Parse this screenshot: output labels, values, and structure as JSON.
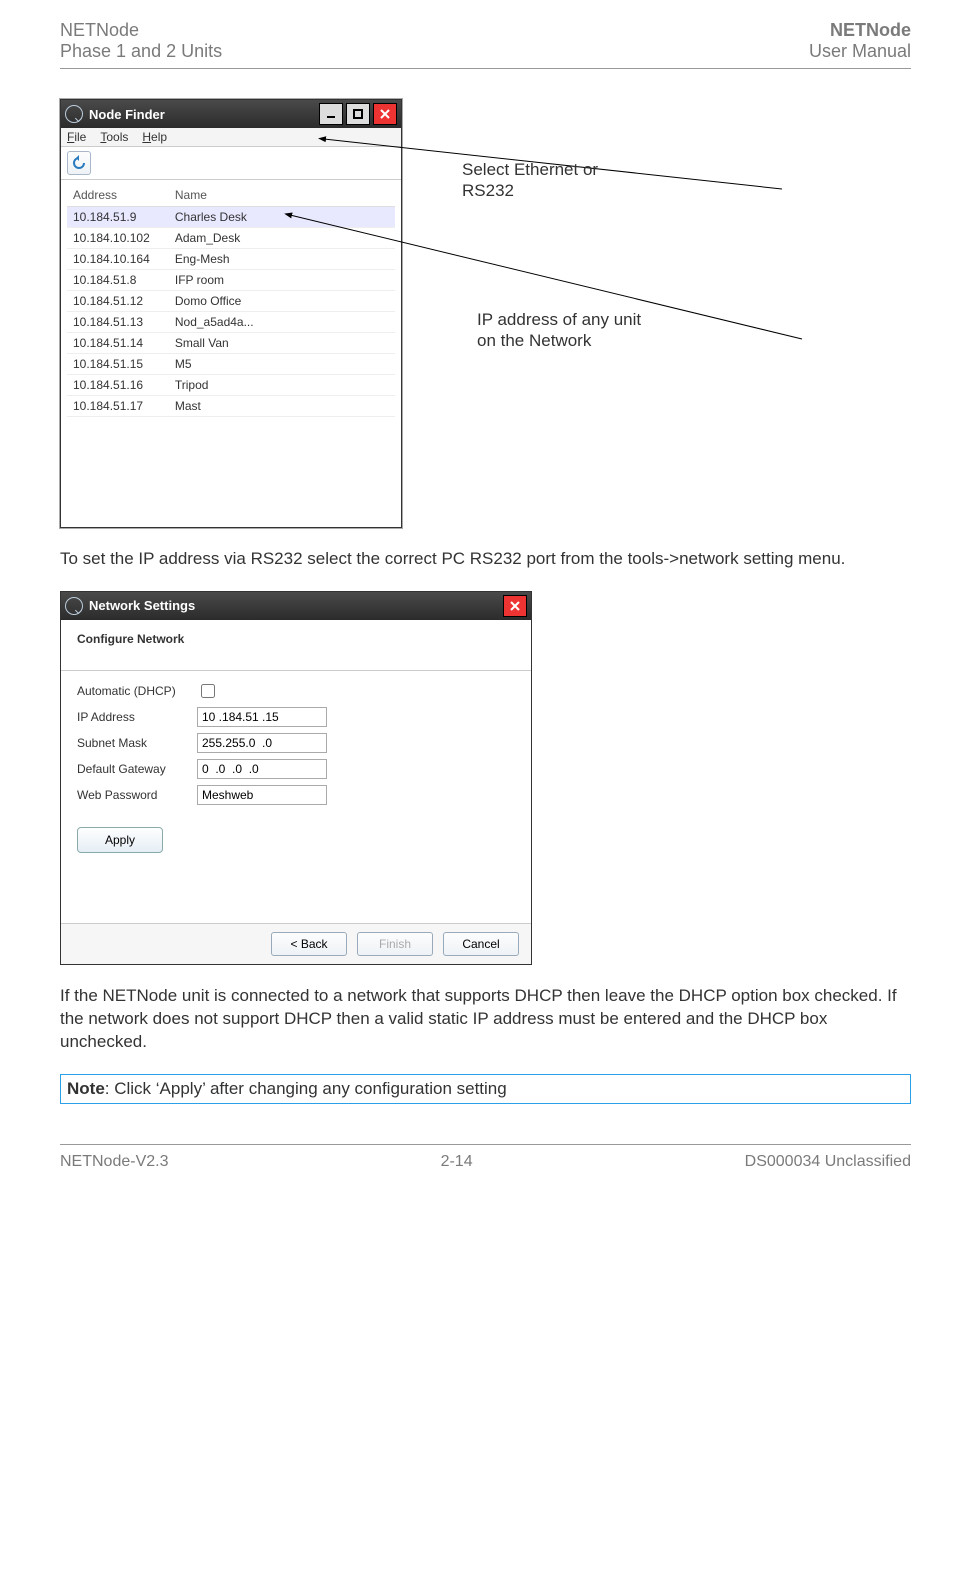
{
  "header": {
    "left_line1": "NETNode",
    "left_line2": "Phase 1 and 2 Units",
    "right_line1": "NETNode",
    "right_line2": "User Manual"
  },
  "footer": {
    "left": "NETNode-V2.3",
    "center": "2-14",
    "right": "DS000034 Unclassified"
  },
  "nodefinder": {
    "title": "Node Finder",
    "menu": {
      "file": "File",
      "tools": "Tools",
      "help": "Help"
    },
    "columns": {
      "address": "Address",
      "name": "Name"
    },
    "rows": [
      {
        "addr": "10.184.51.9",
        "name": "Charles Desk",
        "hl": true
      },
      {
        "addr": "10.184.10.102",
        "name": "Adam_Desk"
      },
      {
        "addr": "10.184.10.164",
        "name": "Eng-Mesh"
      },
      {
        "addr": "10.184.51.8",
        "name": "IFP room"
      },
      {
        "addr": "10.184.51.12",
        "name": "Domo Office"
      },
      {
        "addr": "10.184.51.13",
        "name": "Nod_a5ad4a..."
      },
      {
        "addr": "10.184.51.14",
        "name": "Small Van"
      },
      {
        "addr": "10.184.51.15",
        "name": "M5"
      },
      {
        "addr": "10.184.51.16",
        "name": "Tripod"
      },
      {
        "addr": "10.184.51.17",
        "name": "Mast"
      }
    ]
  },
  "annotations": {
    "a1": "Select Ethernet or RS232",
    "a2": "IP address of any unit on the Network"
  },
  "para1": "To set the IP address via RS232 select the correct PC RS232 port from the tools->network setting menu.",
  "netsettings": {
    "title": "Network Settings",
    "heading": "Configure Network",
    "labels": {
      "dhcp": "Automatic (DHCP)",
      "ip": "IP Address",
      "mask": "Subnet Mask",
      "gw": "Default Gateway",
      "pwd": "Web Password"
    },
    "values": {
      "ip": "10 .184.51 .15",
      "mask": "255.255.0  .0",
      "gw": "0  .0  .0  .0",
      "pwd": "Meshweb"
    },
    "apply": "Apply",
    "buttons": {
      "back": "< Back",
      "finish": "Finish",
      "cancel": "Cancel"
    }
  },
  "para2": "If the NETNode unit is connected to a network that supports DHCP then leave the DHCP option box checked. If the network does not support DHCP then a valid static IP address must be entered and the DHCP box unchecked.",
  "note_bold": "Note",
  "note_rest": ": Click ‘Apply’ after changing any configuration setting"
}
